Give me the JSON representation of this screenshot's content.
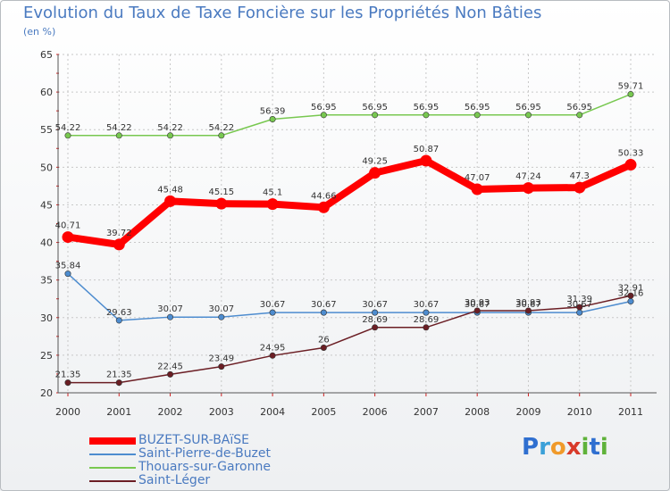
{
  "title": "Evolution du Taux de Taxe Foncière sur les Propriétés Non Bâties",
  "unit": "(en %)",
  "logo": {
    "letters": [
      "P",
      "r",
      "o",
      "x",
      "i",
      "t",
      "i"
    ],
    "colors": [
      "#2f6fd0",
      "#3aa0d8",
      "#f09a2a",
      "#d83a2a",
      "#5fb23a",
      "#2f6fd0",
      "#5fb23a"
    ]
  },
  "chart_data": {
    "type": "line",
    "title": "Evolution du Taux de Taxe Foncière sur les Propriétés Non Bâties",
    "ylabel": "(en %)",
    "ylim": [
      20,
      65
    ],
    "yticks": [
      20,
      25,
      30,
      35,
      40,
      45,
      50,
      55,
      60,
      65
    ],
    "x": [
      "2000",
      "2001",
      "2002",
      "2003",
      "2004",
      "2005",
      "2006",
      "2007",
      "2008",
      "2009",
      "2010",
      "2011"
    ],
    "series": [
      {
        "name": "BUZET-SUR-BAïSE",
        "color": "#ff0000",
        "emphasis": "bold",
        "values": [
          40.71,
          39.72,
          45.48,
          45.15,
          45.1,
          44.66,
          49.25,
          50.87,
          47.07,
          47.24,
          47.3,
          50.33
        ],
        "labels": [
          "40.71",
          "39.72",
          "45.48",
          "45.15",
          "45.1",
          "44.66",
          "49.25",
          "50.87",
          "47.07",
          "47.24",
          "47.3",
          "50.33"
        ]
      },
      {
        "name": "Saint-Pierre-de-Buzet",
        "color": "#4d8ccf",
        "emphasis": "thin",
        "values": [
          35.84,
          29.63,
          30.07,
          30.07,
          30.67,
          30.67,
          30.67,
          30.67,
          30.67,
          30.67,
          30.67,
          32.16
        ],
        "labels": [
          "35.84",
          "29.63",
          "30.07",
          "30.07",
          "30.67",
          "30.67",
          "30.67",
          "30.67",
          "30.67",
          "30.67",
          "30.67",
          "32.16"
        ]
      },
      {
        "name": "Thouars-sur-Garonne",
        "color": "#78c850",
        "emphasis": "thin",
        "values": [
          54.22,
          54.22,
          54.22,
          54.22,
          56.39,
          56.95,
          56.95,
          56.95,
          56.95,
          56.95,
          56.95,
          59.71
        ],
        "labels": [
          "54.22",
          "54.22",
          "54.22",
          "54.22",
          "56.39",
          "56.95",
          "56.95",
          "56.95",
          "56.95",
          "56.95",
          "56.95",
          "59.71"
        ]
      },
      {
        "name": "Saint-Léger",
        "color": "#6b1e24",
        "emphasis": "thin",
        "values": [
          21.35,
          21.35,
          22.45,
          23.49,
          24.95,
          26,
          28.69,
          28.69,
          30.93,
          30.93,
          31.39,
          32.91
        ],
        "labels": [
          "21.35",
          "21.35",
          "22.45",
          "23.49",
          "24.95",
          "26",
          "28.69",
          "28.69",
          "30.93",
          "30.93",
          "31.39",
          "32.91"
        ]
      }
    ]
  }
}
